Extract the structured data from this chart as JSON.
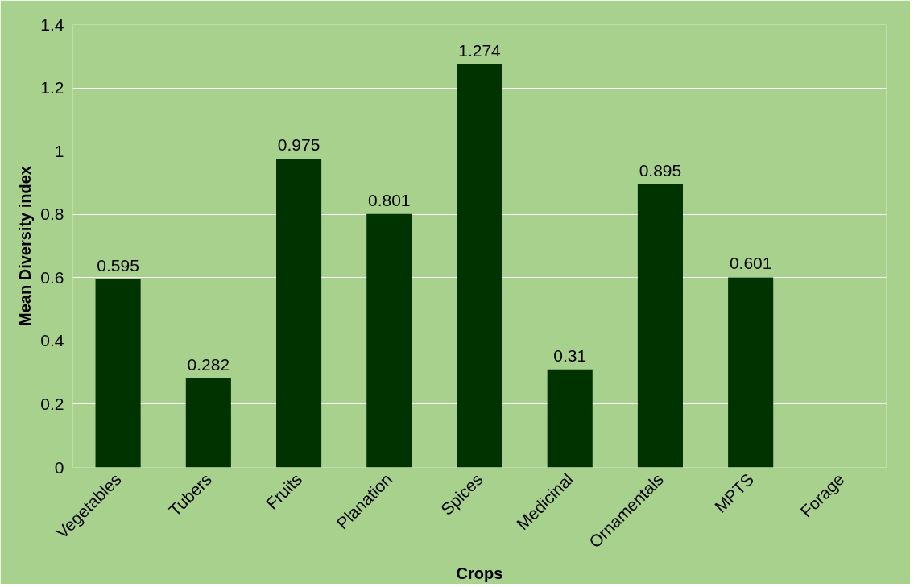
{
  "chart_data": {
    "type": "bar",
    "xlabel": "Crops",
    "ylabel": "Mean Diversity index",
    "categories": [
      "Vegetables",
      "Tubers",
      "Fruits",
      "Planation",
      "Spices",
      "Medicinal",
      "Ornamentals",
      "MPTS",
      "Forage"
    ],
    "values": [
      0.595,
      0.282,
      0.975,
      0.801,
      1.274,
      0.31,
      0.895,
      0.601,
      null
    ],
    "value_labels": [
      "0.595",
      "0.282",
      "0.975",
      "0.801",
      "1.274",
      "0.31",
      "0.895",
      "0.601",
      null
    ],
    "color": "#003300",
    "ylim": [
      0,
      1.4
    ],
    "yticks": [
      0,
      {
        "value": 0.2,
        "label": "0.2"
      },
      {
        "value": 0.4,
        "label": "0.4"
      },
      {
        "value": 0.6,
        "label": "0.6"
      },
      {
        "value": 0.8,
        "label": "0.8"
      },
      1,
      {
        "value": 1.2,
        "label": "1.2"
      },
      {
        "value": 1.4,
        "label": "1.4"
      }
    ],
    "grid": "y"
  }
}
